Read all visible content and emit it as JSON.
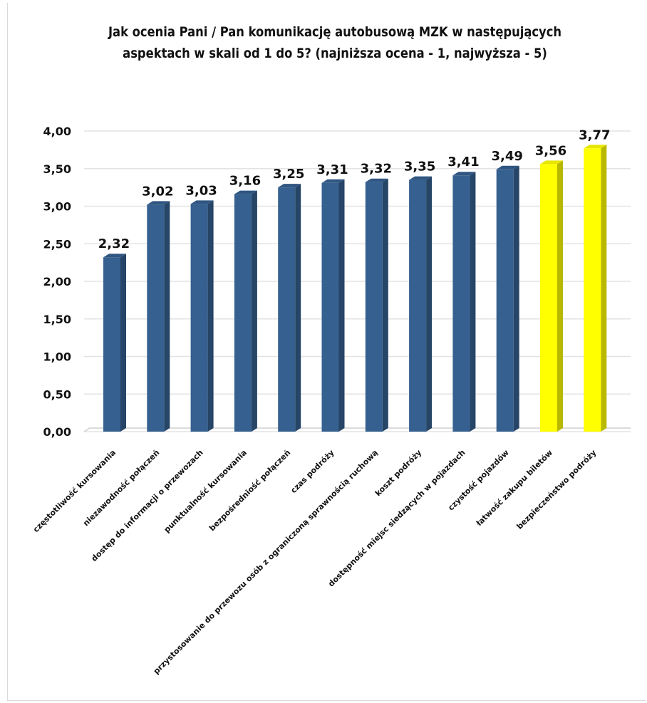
{
  "chart_data": {
    "type": "bar",
    "title_lines": [
      "Jak ocenia Pani / Pan komunikację autobusową MZK w następujących",
      "aspektach w skali od 1 do 5? (najniższa ocena - 1, najwyższa - 5)"
    ],
    "categories": [
      "częstotliwość kursowania",
      "niezawodność połączeń",
      "dostęp do informacji o przewozach",
      "punktualność kursowania",
      "bezpośredniość połączeń",
      "czas podróży",
      "przystosowanie do przewozu osób z ograniczoną sprawnością ruchową",
      "koszt podróży",
      "dostępność miejsc siedzących w pojazdach",
      "czystość pojazdów",
      "łatwość zakupu biletów",
      "bezpieczeństwo podróży"
    ],
    "values": [
      2.32,
      3.02,
      3.03,
      3.16,
      3.25,
      3.31,
      3.32,
      3.35,
      3.41,
      3.49,
      3.56,
      3.77
    ],
    "value_labels": [
      "2,32",
      "3,02",
      "3,03",
      "3,16",
      "3,25",
      "3,31",
      "3,32",
      "3,35",
      "3,41",
      "3,49",
      "3,56",
      "3,77"
    ],
    "bar_colors": [
      "#35608f",
      "#35608f",
      "#35608f",
      "#35608f",
      "#35608f",
      "#35608f",
      "#35608f",
      "#35608f",
      "#35608f",
      "#35608f",
      "#ffff00",
      "#ffff00"
    ],
    "y_ticks": [
      "0,00",
      "0,50",
      "1,00",
      "1,50",
      "2,00",
      "2,50",
      "3,00",
      "3,50",
      "4,00"
    ],
    "ylim": [
      0,
      4
    ],
    "grid": true,
    "legend": false
  }
}
